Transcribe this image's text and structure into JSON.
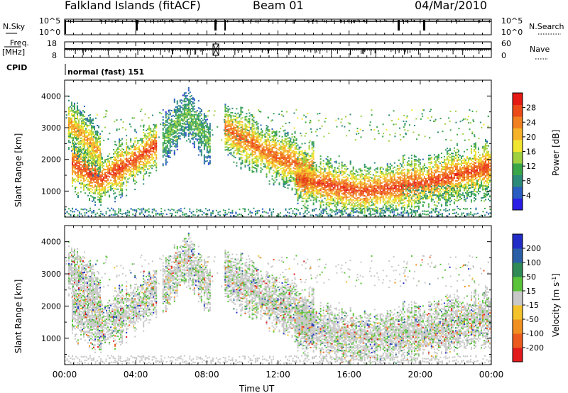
{
  "header": {
    "station": "Falkland Islands (fitACF)",
    "beam": "Beam 01",
    "date": "04/Mar/2010"
  },
  "status_panel": {
    "nsky_label": "N.Sky",
    "nsky_ticks": [
      "10^5",
      "10^0"
    ],
    "nsearch_label": "N.Search",
    "nsearch_ticks": [
      "10^5",
      "10^0"
    ],
    "freq_label_1": "Freq.",
    "freq_label_2": "[MHz]",
    "freq_ticks": [
      "18",
      "8"
    ],
    "nave_label": "Nave",
    "nave_ticks": [
      "60",
      "0"
    ],
    "cpid_label": "CPID",
    "cpid_value": "normal (fast) 151"
  },
  "power_panel": {
    "ylabel": "Slant Range [km]",
    "yticks": [
      "4000",
      "3000",
      "2000",
      "1000"
    ],
    "colorbar_label": "Power [dB]",
    "colorbar_ticks": [
      "28",
      "24",
      "20",
      "16",
      "12",
      "8",
      "4"
    ],
    "colors": [
      "#2a1ee6",
      "#2a5dc1",
      "#2b8a7a",
      "#3aa64a",
      "#9fd040",
      "#f2e52f",
      "#f6b32a",
      "#f08020",
      "#ec4a18",
      "#e61a14"
    ]
  },
  "velocity_panel": {
    "ylabel": "Slant Range [km]",
    "yticks": [
      "4000",
      "3000",
      "2000",
      "1000"
    ],
    "colorbar_label": "Velocity [m s^-1]",
    "colorbar_ticks": [
      "200",
      "100",
      "50",
      "15",
      "-15",
      "-50",
      "-100",
      "-200"
    ],
    "colors": [
      "#222dc8",
      "#2a5fa8",
      "#2f8a55",
      "#59c43a",
      "#c8c8c8",
      "#f4c32c",
      "#f09020",
      "#ec5a1e",
      "#e31a1c"
    ]
  },
  "xaxis": {
    "label": "Time UT",
    "ticks": [
      "00:00",
      "04:00",
      "08:00",
      "12:00",
      "16:00",
      "20:00",
      "00:00"
    ]
  },
  "chart_data": {
    "type": "heatmap",
    "x_range_hours": [
      0,
      24
    ],
    "y_range_km": [
      180,
      4500
    ],
    "power_colorbar_range_db": [
      0,
      30
    ],
    "velocity_colorbar_range_ms": [
      -250,
      250
    ],
    "power_echo_bands": [
      {
        "t_start_h": 0.4,
        "t_end_h": 5.2,
        "center_range_km": [
          1900,
          1400,
          1900,
          2500
        ],
        "level_db": 28
      },
      {
        "t_start_h": 0.2,
        "t_end_h": 2.0,
        "center_range_km": [
          3200,
          2200
        ],
        "level_db": 22
      },
      {
        "t_start_h": 5.5,
        "t_end_h": 8.2,
        "center_range_km": [
          2600,
          3500,
          2500
        ],
        "level_db": 12
      },
      {
        "t_start_h": 9.0,
        "t_end_h": 14.0,
        "center_range_km": [
          3000,
          2200,
          1700
        ],
        "level_db": 26
      },
      {
        "t_start_h": 13.0,
        "t_end_h": 24.0,
        "center_range_km": [
          1400,
          1000,
          1300,
          1800
        ],
        "level_db": 28
      }
    ]
  }
}
